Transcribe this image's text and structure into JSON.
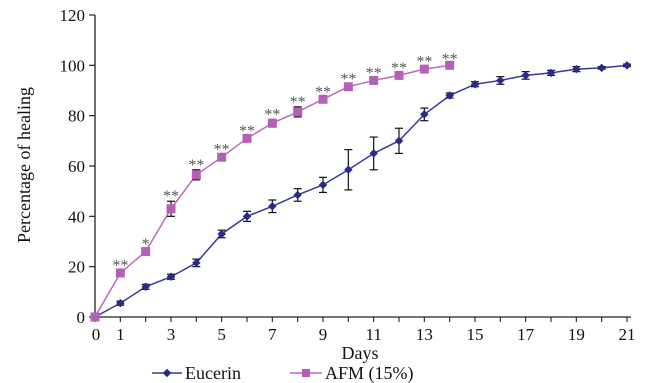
{
  "chart_data": {
    "type": "line",
    "title": "",
    "xlabel": "Days",
    "ylabel": "Percentage of healing",
    "xlim": [
      0,
      21
    ],
    "ylim": [
      0,
      120
    ],
    "x_ticks": [
      0,
      1,
      3,
      5,
      7,
      9,
      11,
      13,
      15,
      17,
      19,
      21
    ],
    "y_ticks": [
      0,
      20,
      40,
      60,
      80,
      100,
      120
    ],
    "grid": false,
    "legend_position": "bottom",
    "series": [
      {
        "name": "Eucerin",
        "color": "#3a3a99",
        "marker": "diamond",
        "x": [
          0,
          1,
          2,
          3,
          4,
          5,
          6,
          7,
          8,
          9,
          10,
          11,
          12,
          13,
          14,
          15,
          16,
          17,
          18,
          19,
          20,
          21
        ],
        "values": [
          0,
          5.5,
          12,
          16,
          21.5,
          33,
          40,
          44,
          48.5,
          52.5,
          58.5,
          65,
          70,
          80.5,
          88,
          92.5,
          94,
          96,
          97,
          98.5,
          99,
          100
        ],
        "errors": [
          0,
          0.8,
          1,
          1,
          1.5,
          1.5,
          2,
          2.5,
          2.5,
          3,
          8,
          6.5,
          5,
          2.5,
          1,
          1,
          1.5,
          1.5,
          1,
          1,
          0.5,
          0.5
        ]
      },
      {
        "name": "AFM (15%)",
        "color": "#bb6bbb",
        "marker": "square",
        "x": [
          0,
          1,
          2,
          3,
          4,
          5,
          6,
          7,
          8,
          9,
          10,
          11,
          12,
          13,
          14
        ],
        "values": [
          0,
          17.5,
          26,
          43,
          56.5,
          63.5,
          71,
          77,
          81.5,
          86.5,
          91.5,
          94,
          96,
          98.5,
          100
        ],
        "errors": [
          0,
          1,
          1,
          3,
          2,
          1,
          1,
          1.5,
          2,
          1,
          1,
          1,
          1,
          1,
          0.5
        ],
        "annotations": [
          "",
          "**",
          "*",
          "**",
          "**",
          "**",
          "**",
          "**",
          "**",
          "**",
          "**",
          "**",
          "**",
          "**",
          "**"
        ]
      }
    ]
  }
}
